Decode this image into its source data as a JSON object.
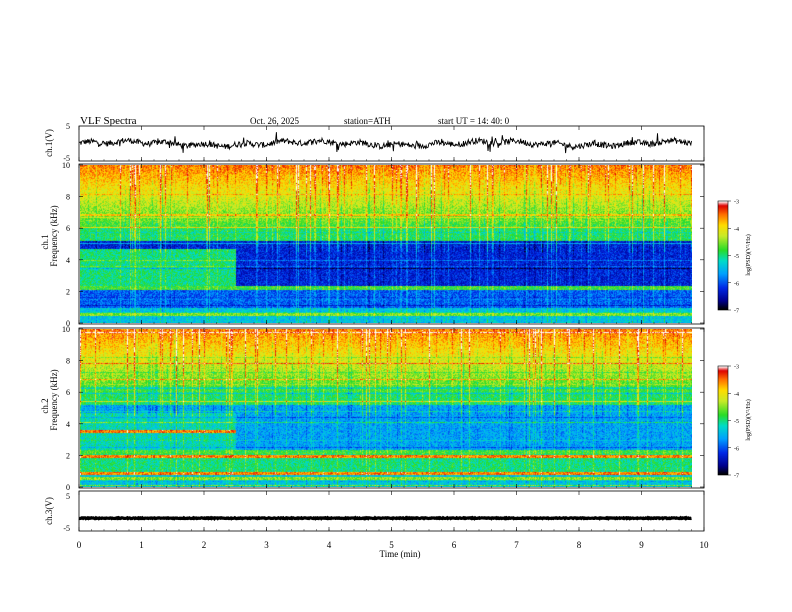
{
  "header": {
    "title": "VLF  Spectra",
    "date": "Oct. 26, 2025",
    "station": "station=ATH",
    "start_ut": "start  UT  =   14: 40: 0"
  },
  "chart_data": {
    "type": "heatmap",
    "x_axis": {
      "label": "Time  (min)",
      "range": [
        0,
        10
      ],
      "ticks": [
        "0",
        "1",
        "2",
        "3",
        "4",
        "5",
        "6",
        "7",
        "8",
        "9",
        "10"
      ],
      "data_end_min": 9.8
    },
    "panels": [
      {
        "kind": "waveform",
        "ylabel": "ch.1(V)",
        "yrange": [
          -5,
          5
        ],
        "yticks": [
          "5",
          "-5"
        ],
        "mean_level": 0.0,
        "amplitude": 1.2
      },
      {
        "kind": "spectrogram",
        "ylabel": "Frequency  (kHz)",
        "channel_label": "ch.1",
        "yrange": [
          0,
          10
        ],
        "yticks": [
          "0",
          "2",
          "4",
          "6",
          "8",
          "10"
        ],
        "colorbar": {
          "label": "log(PSD)(V²/Hz)",
          "range": [
            -7,
            -3
          ],
          "ticks": [
            "-3",
            "-4",
            "-5",
            "-6",
            "-7"
          ]
        },
        "regime_change_min": 2.5
      },
      {
        "kind": "spectrogram",
        "ylabel": "Frequency  (kHz)",
        "channel_label": "ch.2",
        "yrange": [
          0,
          10
        ],
        "yticks": [
          "0",
          "2",
          "4",
          "6",
          "8",
          "10"
        ],
        "colorbar": {
          "label": "log(PSD)(V²/Hz)",
          "range": [
            -7,
            -3
          ],
          "ticks": [
            "-3",
            "-4",
            "-5",
            "-6",
            "-7"
          ]
        },
        "regime_change_min": 2.5
      },
      {
        "kind": "waveform",
        "ylabel": "ch.3(V)",
        "yrange": [
          -5,
          5
        ],
        "yticks": [
          "5",
          "-5"
        ],
        "mean_level": -1.8,
        "amplitude": 0.2
      }
    ]
  }
}
